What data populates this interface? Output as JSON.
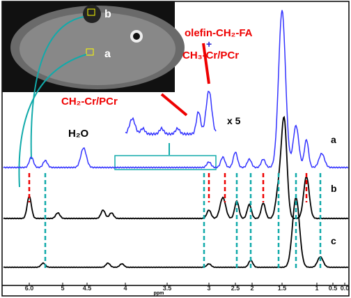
{
  "inset": {
    "roi_b": "b",
    "roi_a": "a"
  },
  "annotations": {
    "olefin": "olefin-CH₂-FA",
    "plus": "+",
    "ch3": "CH₃-Cr/PCr",
    "ch2": "CH₂-Cr/PCr",
    "zoom": "x 5",
    "water": "H₂O"
  },
  "traces": [
    "a",
    "b",
    "c"
  ],
  "axis": {
    "label": "ppm",
    "ticks": [
      "6.0",
      "5",
      "4.5",
      "4",
      "3.5",
      "3",
      "2.5",
      "2",
      "1.5",
      "1",
      "0.5",
      "0.0"
    ]
  }
}
